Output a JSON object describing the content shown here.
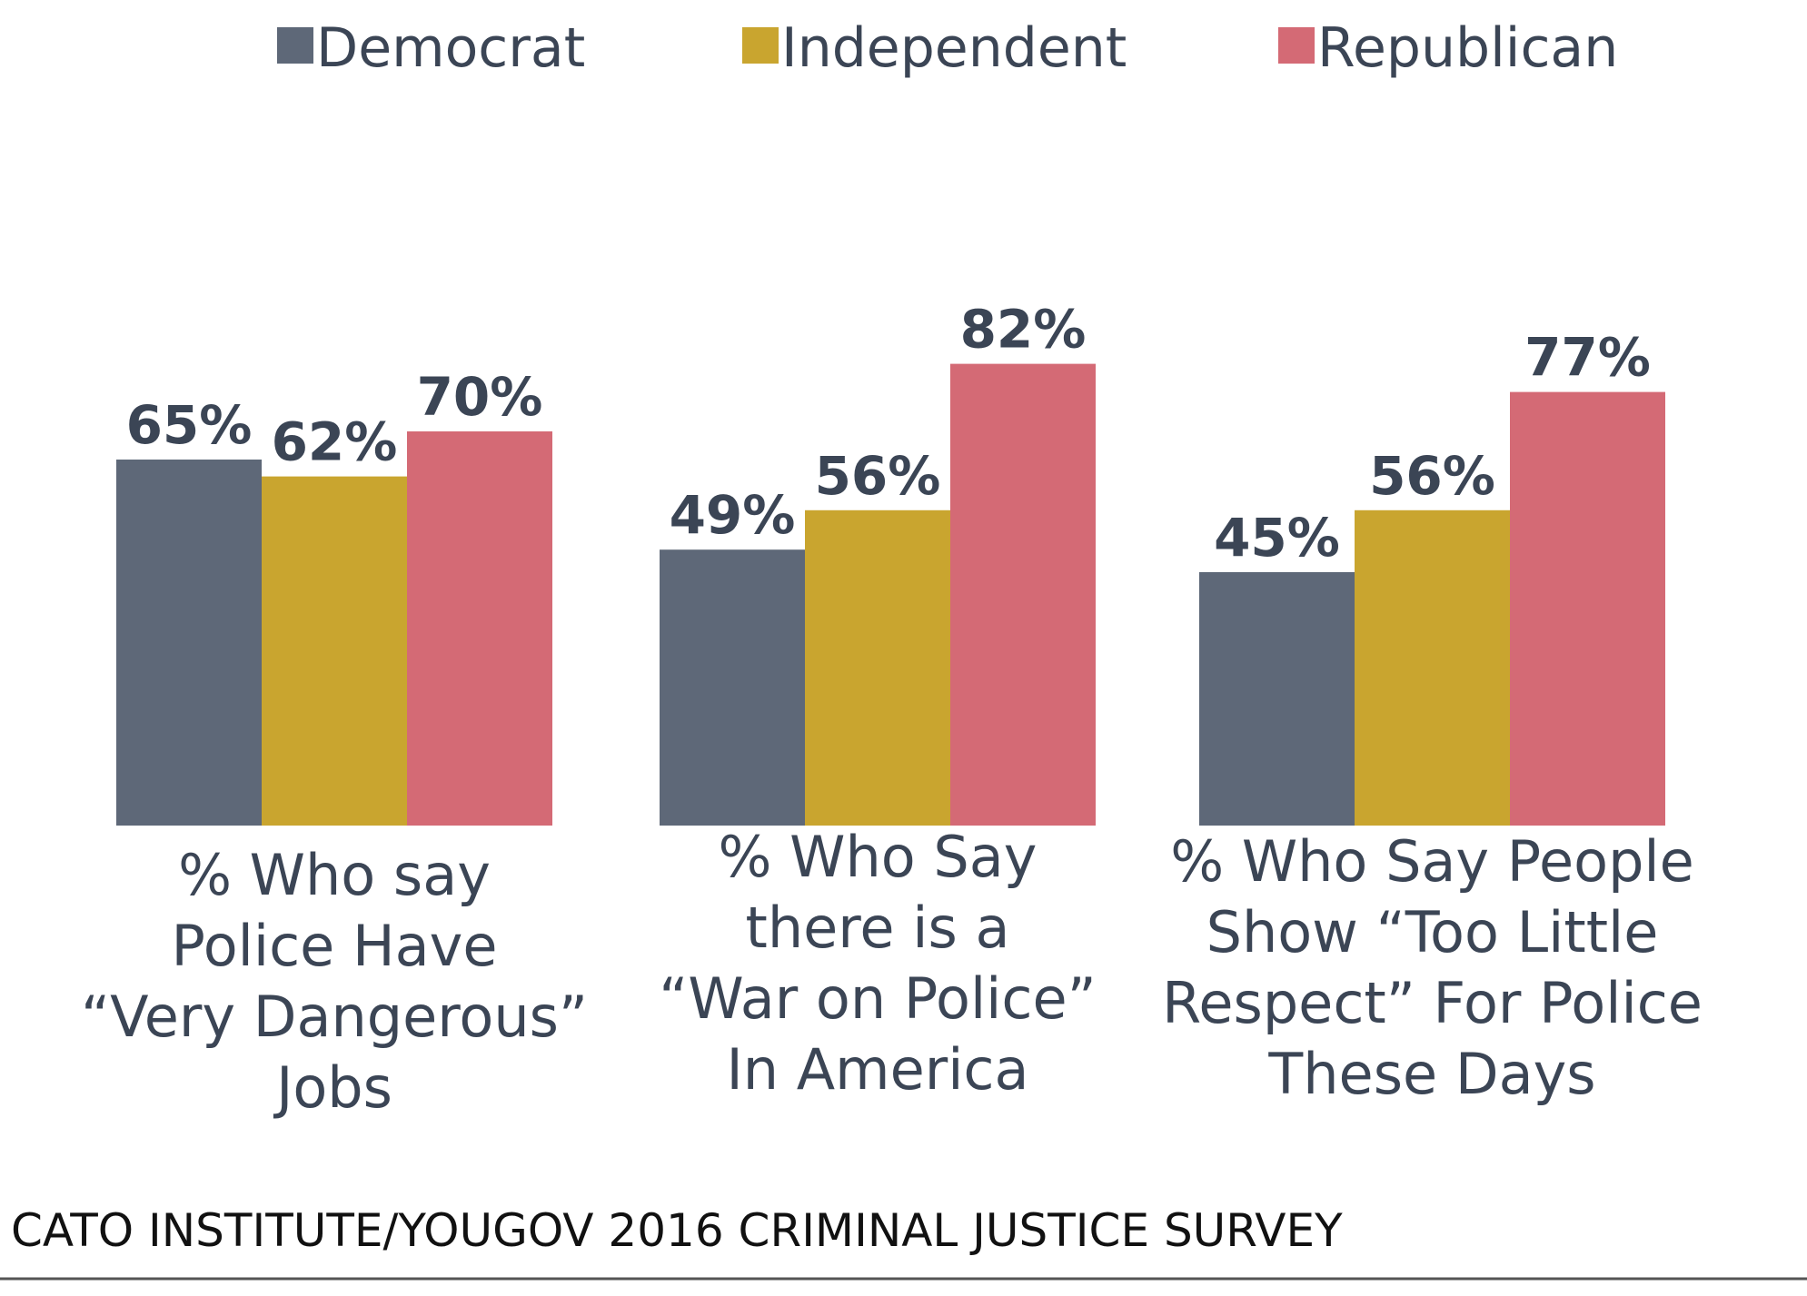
{
  "chart_data": {
    "type": "bar",
    "title": "",
    "xlabel": "",
    "ylabel": "",
    "ylim": [
      0,
      100
    ],
    "grid": false,
    "legend_position": "top",
    "categories": [
      [
        "% Who say",
        "Police Have",
        "“Very Dangerous”",
        "Jobs"
      ],
      [
        "% Who Say",
        "there is a",
        "“War on Police”",
        "In America"
      ],
      [
        "% Who Say People",
        "Show “Too Little",
        "Respect” For Police",
        "These Days"
      ]
    ],
    "series": [
      {
        "name": "Democrat",
        "color": "#5e6878",
        "values": [
          65,
          49,
          45
        ],
        "labels": [
          "65%",
          "49%",
          "45%"
        ]
      },
      {
        "name": "Independent",
        "color": "#c9a52f",
        "values": [
          62,
          56,
          56
        ],
        "labels": [
          "62%",
          "56%",
          "56%"
        ]
      },
      {
        "name": "Republican",
        "color": "#d46a75",
        "values": [
          70,
          82,
          77
        ],
        "labels": [
          "70%",
          "82%",
          "77%"
        ]
      }
    ],
    "source": "CATO INSTITUTE/YOUGOV 2016 CRIMINAL JUSTICE SURVEY"
  }
}
